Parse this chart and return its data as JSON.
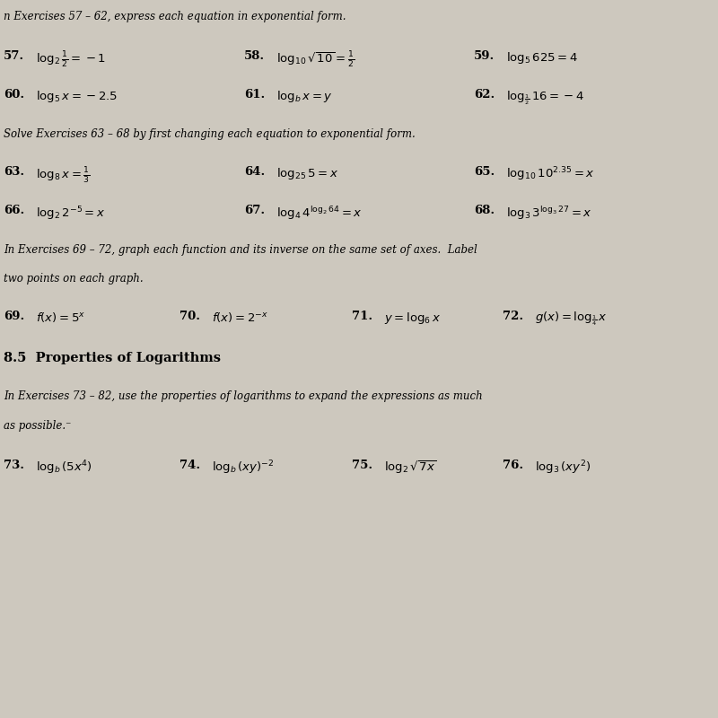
{
  "background_color": "#cdc8be",
  "title_line": "n Exercises 57 – 62, express each equation in exponential form.",
  "section2_header": "Solve Exercises 63 – 68 by first changing each equation to exponential form.",
  "section3_header_line1": "In Exercises 69 – 72, graph each function and its inverse on the same set of axes.  Label",
  "section3_header_line2": "two points on each graph.",
  "section4_bold": "8.5  Properties of Logarithms",
  "section5_header_line1": "In Exercises 73 – 82, use the properties of logarithms to expand the expressions as much",
  "section5_header_line2": "as possible.⁻",
  "rows": [
    {
      "cols": [
        0.005,
        0.34,
        0.66
      ],
      "items": [
        {
          "num": "57.",
          "math": "$\\log_2 \\frac{1}{2} = -1$"
        },
        {
          "num": "58.",
          "math": "$\\log_{10} \\sqrt{10} = \\frac{1}{2}$"
        },
        {
          "num": "59.",
          "math": "$\\log_5 625 = 4$"
        }
      ]
    },
    {
      "cols": [
        0.005,
        0.34,
        0.66
      ],
      "items": [
        {
          "num": "60.",
          "math": "$\\log_5 x = -2.5$"
        },
        {
          "num": "61.",
          "math": "$\\log_b x = y$"
        },
        {
          "num": "62.",
          "math": "$\\log_{\\frac{1}{2}} 16 = -4$"
        }
      ]
    },
    {
      "cols": [
        0.005,
        0.34,
        0.66
      ],
      "items": [
        {
          "num": "63.",
          "math": "$\\log_8 x = \\frac{1}{3}$"
        },
        {
          "num": "64.",
          "math": "$\\log_{25} 5 = x$"
        },
        {
          "num": "65.",
          "math": "$\\log_{10} 10^{2.35} = x$"
        }
      ]
    },
    {
      "cols": [
        0.005,
        0.34,
        0.66
      ],
      "items": [
        {
          "num": "66.",
          "math": "$\\log_2 2^{-5} = x$"
        },
        {
          "num": "67.",
          "math": "$\\log_4 4^{\\log_2 64} = x$"
        },
        {
          "num": "68.",
          "math": "$\\log_3 3^{\\log_3 27} = x$"
        }
      ]
    },
    {
      "cols": [
        0.005,
        0.25,
        0.49,
        0.7
      ],
      "items": [
        {
          "num": "69.",
          "math": "$f(x) = 5^x$"
        },
        {
          "num": "70.",
          "math": "$f(x) = 2^{-x}$"
        },
        {
          "num": "71.",
          "math": "$y = \\log_6 x$"
        },
        {
          "num": "72.",
          "math": "$g(x) = \\log_{\\frac{1}{4}} x$"
        }
      ]
    },
    {
      "cols": [
        0.005,
        0.25,
        0.49,
        0.7
      ],
      "items": [
        {
          "num": "73.",
          "math": "$\\log_b (5x^4)$"
        },
        {
          "num": "74.",
          "math": "$\\log_b (xy)^{-2}$"
        },
        {
          "num": "75.",
          "math": "$\\log_2 \\sqrt{7x}$"
        },
        {
          "num": "76.",
          "math": "$\\log_3 (xy^2)$"
        }
      ]
    }
  ],
  "header_fs": 8.5,
  "num_fs": 9.5,
  "math_fs": 9.5,
  "bold_fs": 10.5
}
